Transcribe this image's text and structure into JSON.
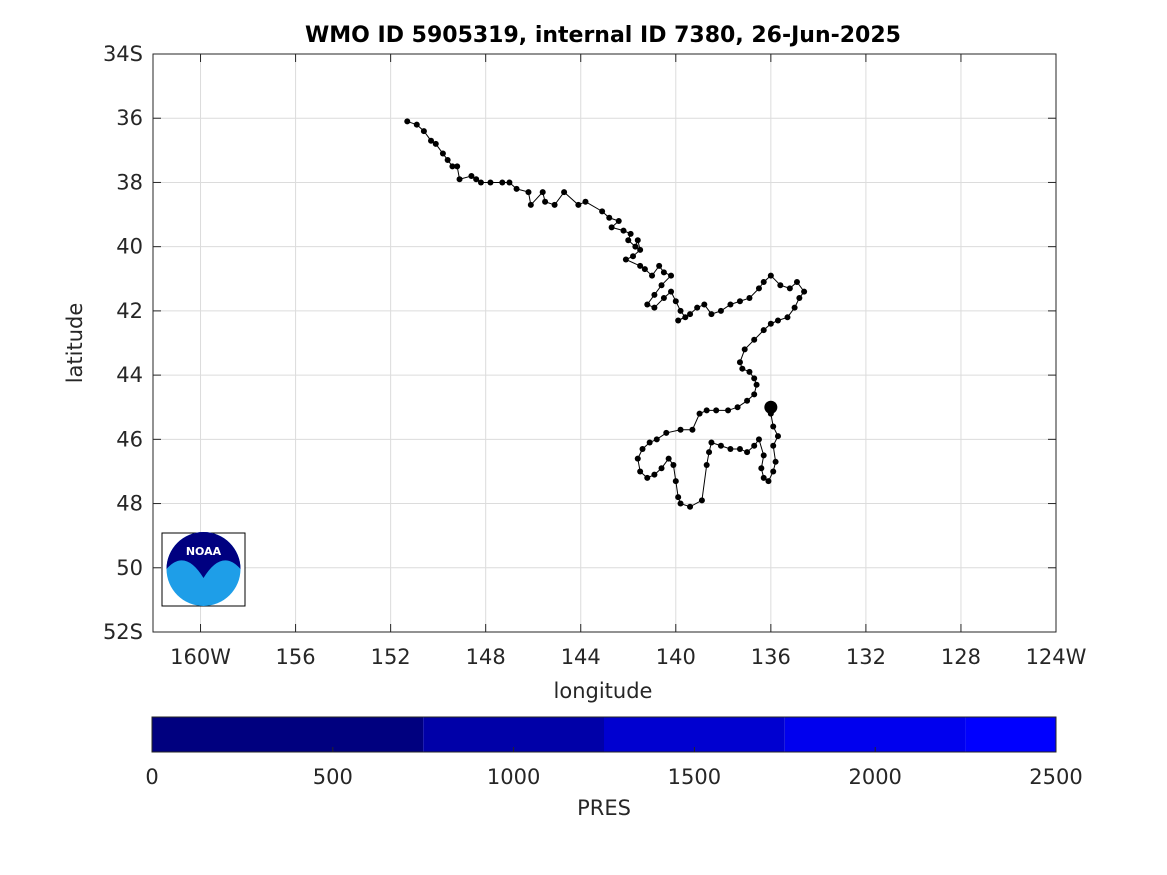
{
  "chart_data": {
    "type": "scatter",
    "title": "WMO ID 5905319, internal ID 7380, 26-Jun-2025",
    "xlabel": "longitude",
    "ylabel": "latitude",
    "xlim": [
      -162,
      -124
    ],
    "ylim": [
      -52,
      -34
    ],
    "grid": true,
    "x_ticks": [
      -160,
      -156,
      -152,
      -148,
      -144,
      -140,
      -136,
      -132,
      -128,
      -124
    ],
    "x_tick_labels": [
      "160W",
      "156",
      "152",
      "148",
      "144",
      "140",
      "136",
      "132",
      "128",
      "124W"
    ],
    "y_ticks": [
      -34,
      -36,
      -38,
      -40,
      -42,
      -44,
      -46,
      -48,
      -50,
      -52
    ],
    "y_tick_labels": [
      "34S",
      "36",
      "38",
      "40",
      "42",
      "44",
      "46",
      "48",
      "50",
      "52S"
    ],
    "marker_color": "#000000",
    "series": [
      {
        "values": [
          [
            -151.3,
            -36.1
          ],
          [
            -150.9,
            -36.2
          ],
          [
            -150.6,
            -36.4
          ],
          [
            -150.3,
            -36.7
          ],
          [
            -150.1,
            -36.8
          ],
          [
            -149.8,
            -37.1
          ],
          [
            -149.6,
            -37.3
          ],
          [
            -149.4,
            -37.5
          ],
          [
            -149.2,
            -37.5
          ],
          [
            -149.1,
            -37.9
          ],
          [
            -148.6,
            -37.8
          ],
          [
            -148.4,
            -37.9
          ],
          [
            -148.2,
            -38.0
          ],
          [
            -147.8,
            -38.0
          ],
          [
            -147.3,
            -38.0
          ],
          [
            -147.0,
            -38.0
          ],
          [
            -146.7,
            -38.2
          ],
          [
            -146.2,
            -38.3
          ],
          [
            -146.1,
            -38.7
          ],
          [
            -145.6,
            -38.3
          ],
          [
            -145.5,
            -38.6
          ],
          [
            -145.1,
            -38.7
          ],
          [
            -144.7,
            -38.3
          ],
          [
            -144.1,
            -38.7
          ],
          [
            -143.8,
            -38.6
          ],
          [
            -143.1,
            -38.9
          ],
          [
            -142.8,
            -39.1
          ],
          [
            -142.4,
            -39.2
          ],
          [
            -142.7,
            -39.4
          ],
          [
            -142.2,
            -39.5
          ],
          [
            -141.9,
            -39.6
          ],
          [
            -142.0,
            -39.8
          ],
          [
            -141.7,
            -40.0
          ],
          [
            -141.6,
            -39.8
          ],
          [
            -141.5,
            -40.1
          ],
          [
            -141.8,
            -40.3
          ],
          [
            -142.1,
            -40.4
          ],
          [
            -141.5,
            -40.6
          ],
          [
            -141.3,
            -40.7
          ],
          [
            -141.0,
            -40.9
          ],
          [
            -140.7,
            -40.6
          ],
          [
            -140.5,
            -40.8
          ],
          [
            -140.2,
            -40.9
          ],
          [
            -140.6,
            -41.2
          ],
          [
            -140.9,
            -41.5
          ],
          [
            -141.2,
            -41.8
          ],
          [
            -140.9,
            -41.9
          ],
          [
            -140.5,
            -41.6
          ],
          [
            -140.2,
            -41.4
          ],
          [
            -140.0,
            -41.7
          ],
          [
            -139.8,
            -42.0
          ],
          [
            -139.6,
            -42.2
          ],
          [
            -139.9,
            -42.3
          ],
          [
            -139.4,
            -42.1
          ],
          [
            -139.1,
            -41.9
          ],
          [
            -138.8,
            -41.8
          ],
          [
            -138.5,
            -42.1
          ],
          [
            -138.1,
            -42.0
          ],
          [
            -137.7,
            -41.8
          ],
          [
            -137.3,
            -41.7
          ],
          [
            -136.9,
            -41.6
          ],
          [
            -136.5,
            -41.3
          ],
          [
            -136.3,
            -41.1
          ],
          [
            -136.0,
            -40.9
          ],
          [
            -135.6,
            -41.2
          ],
          [
            -135.2,
            -41.3
          ],
          [
            -134.9,
            -41.1
          ],
          [
            -134.6,
            -41.4
          ],
          [
            -134.8,
            -41.6
          ],
          [
            -135.0,
            -41.9
          ],
          [
            -135.3,
            -42.2
          ],
          [
            -135.7,
            -42.3
          ],
          [
            -136.0,
            -42.4
          ],
          [
            -136.3,
            -42.6
          ],
          [
            -136.7,
            -42.9
          ],
          [
            -137.1,
            -43.2
          ],
          [
            -137.3,
            -43.6
          ],
          [
            -137.2,
            -43.8
          ],
          [
            -136.9,
            -43.9
          ],
          [
            -136.7,
            -44.1
          ],
          [
            -136.6,
            -44.3
          ],
          [
            -136.7,
            -44.6
          ],
          [
            -137.0,
            -44.8
          ],
          [
            -137.4,
            -45.0
          ],
          [
            -137.8,
            -45.1
          ],
          [
            -138.3,
            -45.1
          ],
          [
            -138.7,
            -45.1
          ],
          [
            -139.0,
            -45.2
          ],
          [
            -139.3,
            -45.7
          ],
          [
            -139.8,
            -45.7
          ],
          [
            -140.4,
            -45.8
          ],
          [
            -140.8,
            -46.0
          ],
          [
            -141.1,
            -46.1
          ],
          [
            -141.4,
            -46.3
          ],
          [
            -141.6,
            -46.6
          ],
          [
            -141.5,
            -47.0
          ],
          [
            -141.2,
            -47.2
          ],
          [
            -140.9,
            -47.1
          ],
          [
            -140.6,
            -46.9
          ],
          [
            -140.3,
            -46.6
          ],
          [
            -140.1,
            -46.8
          ],
          [
            -140.0,
            -47.3
          ],
          [
            -139.9,
            -47.8
          ],
          [
            -139.8,
            -48.0
          ],
          [
            -139.4,
            -48.1
          ],
          [
            -138.9,
            -47.9
          ],
          [
            -138.7,
            -46.8
          ],
          [
            -138.6,
            -46.4
          ],
          [
            -138.5,
            -46.1
          ],
          [
            -138.1,
            -46.2
          ],
          [
            -137.7,
            -46.3
          ],
          [
            -137.3,
            -46.3
          ],
          [
            -137.0,
            -46.4
          ],
          [
            -136.7,
            -46.2
          ],
          [
            -136.5,
            -46.0
          ],
          [
            -136.3,
            -46.5
          ],
          [
            -136.4,
            -46.9
          ],
          [
            -136.3,
            -47.2
          ],
          [
            -136.1,
            -47.3
          ],
          [
            -135.9,
            -47.0
          ],
          [
            -135.8,
            -46.7
          ],
          [
            -135.9,
            -46.2
          ],
          [
            -135.7,
            -45.9
          ],
          [
            -135.9,
            -45.6
          ],
          [
            -136.0,
            -45.2
          ],
          [
            -136.0,
            -45.0
          ]
        ]
      }
    ]
  },
  "colorbar": {
    "label": "PRES",
    "ticks": [
      "0",
      "500",
      "1000",
      "1500",
      "2000",
      "2500"
    ],
    "colors": [
      "#00007f",
      "#0000a8",
      "#0000d0",
      "#0000ee",
      "#0000ff",
      "#0033ff"
    ],
    "boundaries": [
      0,
      750,
      1250,
      1750,
      2250,
      2500
    ],
    "min": 0,
    "max": 2500
  },
  "logo": {
    "text": "NOAA",
    "colors": {
      "dark": "#000080",
      "light": "#1e9ee8"
    }
  }
}
